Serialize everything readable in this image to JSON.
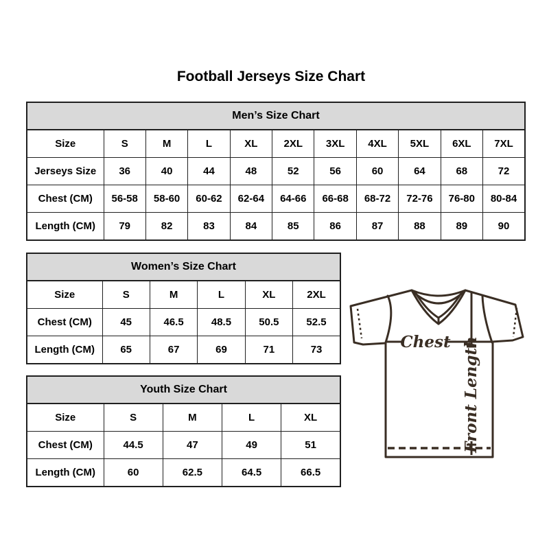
{
  "page": {
    "title": "Football Jerseys Size Chart"
  },
  "tables": [
    {
      "title": "Men’s Size Chart",
      "rows": [
        [
          "Size",
          "S",
          "M",
          "L",
          "XL",
          "2XL",
          "3XL",
          "4XL",
          "5XL",
          "6XL",
          "7XL"
        ],
        [
          "Jerseys Size",
          "36",
          "40",
          "44",
          "48",
          "52",
          "56",
          "60",
          "64",
          "68",
          "72"
        ],
        [
          "Chest (CM)",
          "56-58",
          "58-60",
          "60-62",
          "62-64",
          "64-66",
          "66-68",
          "68-72",
          "72-76",
          "76-80",
          "80-84"
        ],
        [
          "Length (CM)",
          "79",
          "82",
          "83",
          "84",
          "85",
          "86",
          "87",
          "88",
          "89",
          "90"
        ]
      ]
    },
    {
      "title": "Women’s Size Chart",
      "rows": [
        [
          "Size",
          "S",
          "M",
          "L",
          "XL",
          "2XL"
        ],
        [
          "Chest (CM)",
          "45",
          "46.5",
          "48.5",
          "50.5",
          "52.5"
        ],
        [
          "Length (CM)",
          "65",
          "67",
          "69",
          "71",
          "73"
        ]
      ]
    },
    {
      "title": "Youth Size Chart",
      "rows": [
        [
          "Size",
          "S",
          "M",
          "L",
          "XL"
        ],
        [
          "Chest (CM)",
          "44.5",
          "47",
          "49",
          "51"
        ],
        [
          "Length (CM)",
          "60",
          "62.5",
          "64.5",
          "66.5"
        ]
      ]
    }
  ],
  "jersey": {
    "chest_label": "Chest",
    "front_length_label": "Front Length"
  },
  "colors": {
    "table_border": "#1f1f1f",
    "table_header_bg": "#d9d9d9",
    "text": "#000000",
    "jersey_line": "#3a2e24",
    "background": "#ffffff"
  }
}
